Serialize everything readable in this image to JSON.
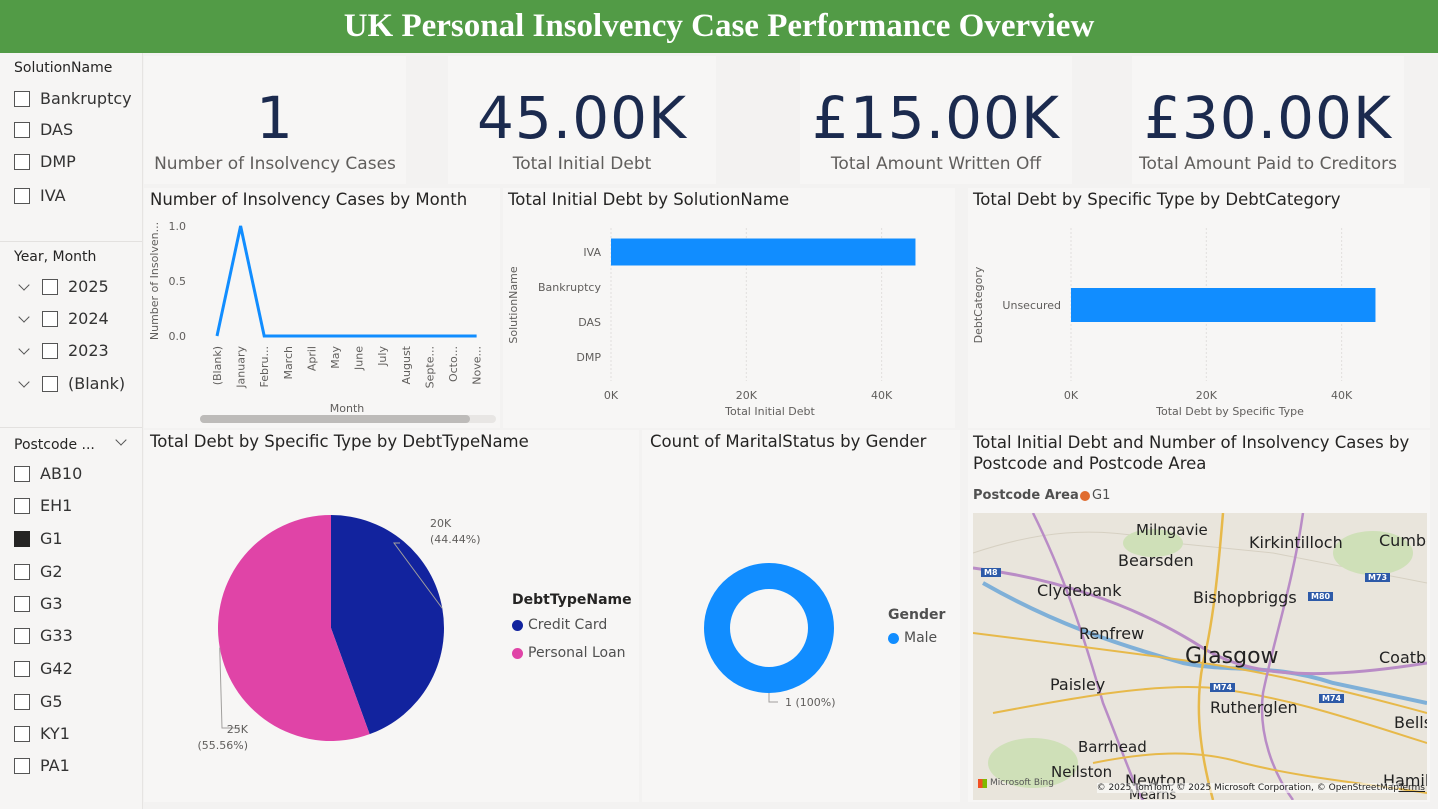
{
  "title": "UK Personal Insolvency Case Performance Overview",
  "slicers": {
    "solution": {
      "title": "SolutionName",
      "items": [
        "Bankruptcy",
        "DAS",
        "DMP",
        "IVA"
      ]
    },
    "yearmonth": {
      "title": "Year, Month",
      "items": [
        "2025",
        "2024",
        "2023",
        "(Blank)"
      ]
    },
    "postcode": {
      "title": "Postcode ...",
      "items": [
        "AB10",
        "EH1",
        "G1",
        "G2",
        "G3",
        "G33",
        "G42",
        "G5",
        "KY1",
        "PA1"
      ],
      "selected": "G1"
    }
  },
  "kpis": [
    {
      "value": "1",
      "label": "Number of Insolvency Cases"
    },
    {
      "value": "45.00K",
      "label": "Total Initial Debt"
    },
    {
      "value": "£15.00K",
      "label": "Total Amount Written Off"
    },
    {
      "value": "£30.00K",
      "label": "Total Amount Paid to Creditors"
    }
  ],
  "visuals": {
    "cases_by_month": {
      "title": "Number of Insolvency Cases by Month",
      "xlabel": "Month",
      "ylabel": "Number of Insolven..."
    },
    "debt_by_solution": {
      "title": "Total Initial Debt by SolutionName",
      "xlabel": "Total Initial Debt",
      "ylabel": "SolutionName"
    },
    "debt_by_category": {
      "title": "Total Debt by Specific Type by DebtCategory",
      "xlabel": "Total Debt by Specific Type",
      "ylabel": "DebtCategory"
    },
    "debt_by_type": {
      "title": "Total Debt by Specific Type by DebtTypeName",
      "legend_title": "DebtTypeName"
    },
    "marital_by_gender": {
      "title": "Count of MaritalStatus by Gender",
      "legend_title": "Gender"
    },
    "map": {
      "title": "Total Initial Debt and Number of Insolvency Cases by Postcode and Postcode Area",
      "legend_title": "Postcode Area",
      "legend_item": "G1",
      "legend_color": "#e06c2f",
      "towns": [
        "Milngavie",
        "Kirkintilloch",
        "Cumb",
        "Bearsden",
        "Clydebank",
        "Bishopbriggs",
        "Renfrew",
        "Glasgow",
        "Coatbrid",
        "Paisley",
        "Rutherglen",
        "Bellshi",
        "Barrhead",
        "Neilston",
        "Newton",
        "Hamilto",
        "Mearns"
      ],
      "roads": [
        "M8",
        "M73",
        "M80",
        "M74",
        "M74"
      ],
      "attribution": "© 2025 TomTom, © 2025 Microsoft Corporation, © OpenStreetMap",
      "terms": "Terms",
      "bing": "Microsoft Bing"
    }
  },
  "chart_data": [
    {
      "type": "line",
      "title": "Number of Insolvency Cases by Month",
      "xlabel": "Month",
      "ylabel": "Number of Insolven...",
      "categories": [
        "(Blank)",
        "January",
        "Febru...",
        "March",
        "April",
        "May",
        "June",
        "July",
        "August",
        "Septe...",
        "Octo...",
        "Nove..."
      ],
      "values": [
        0,
        1,
        0,
        0,
        0,
        0,
        0,
        0,
        0,
        0,
        0,
        0
      ],
      "yticks": [
        "0.0",
        "0.5",
        "1.0"
      ],
      "ylim": [
        0,
        1
      ],
      "color": "#118dff"
    },
    {
      "type": "bar",
      "title": "Total Initial Debt by SolutionName",
      "xlabel": "Total Initial Debt",
      "ylabel": "SolutionName",
      "categories": [
        "IVA",
        "Bankruptcy",
        "DAS",
        "DMP"
      ],
      "values": [
        45000,
        0,
        0,
        0
      ],
      "xticks": [
        "0K",
        "20K",
        "40K"
      ],
      "xlim": [
        0,
        47000
      ],
      "color": "#118dff"
    },
    {
      "type": "bar",
      "title": "Total Debt by Specific Type by DebtCategory",
      "xlabel": "Total Debt by Specific Type",
      "ylabel": "DebtCategory",
      "categories": [
        "Unsecured"
      ],
      "values": [
        45000
      ],
      "xticks": [
        "0K",
        "20K",
        "40K"
      ],
      "xlim": [
        0,
        47000
      ],
      "color": "#118dff"
    },
    {
      "type": "pie",
      "title": "Total Debt by Specific Type by DebtTypeName",
      "labels": [
        "Credit Card",
        "Personal Loan"
      ],
      "values": [
        20000,
        25000
      ],
      "data_labels": [
        "20K",
        "25K"
      ],
      "percent_labels": [
        "(44.44%)",
        "(55.56%)"
      ],
      "colors": [
        "#12239e",
        "#e044a7"
      ]
    },
    {
      "type": "pie",
      "title": "Count of MaritalStatus by Gender",
      "labels": [
        "Male"
      ],
      "values": [
        1
      ],
      "data_labels": [
        "1 (100%)"
      ],
      "colors": [
        "#118dff"
      ]
    }
  ]
}
